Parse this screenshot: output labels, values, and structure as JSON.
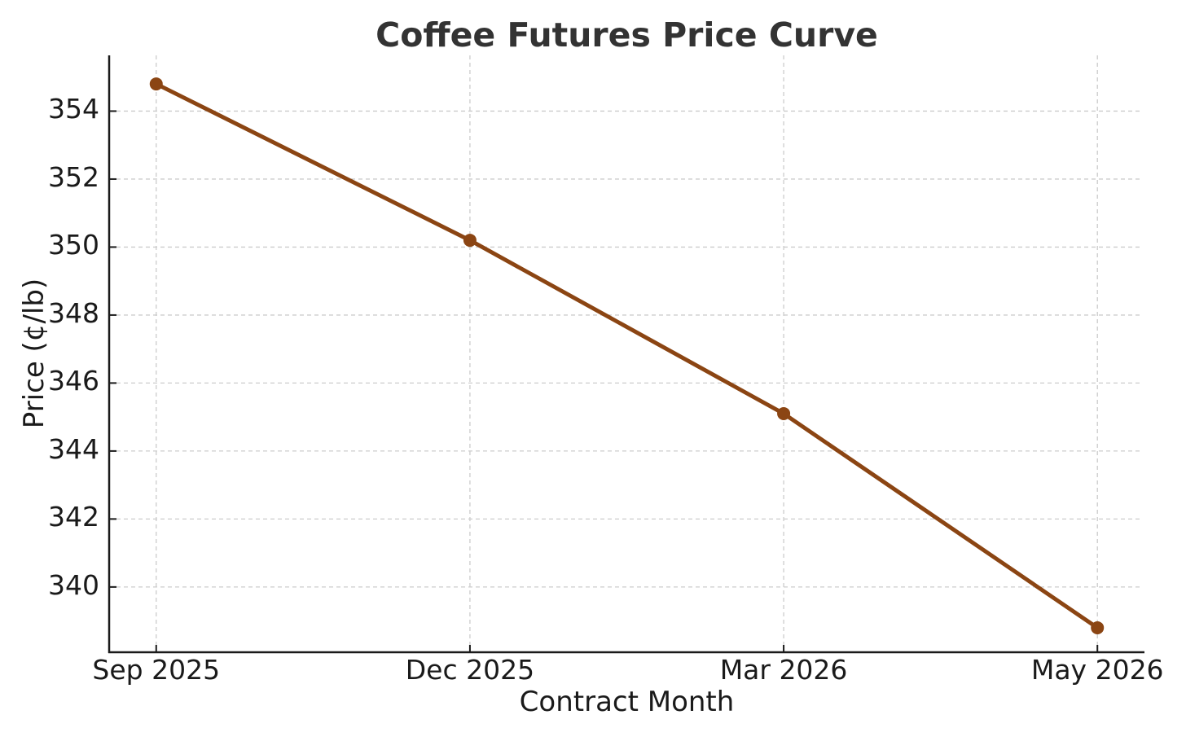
{
  "chart_data": {
    "type": "line",
    "title": "Coffee Futures Price Curve",
    "xlabel": "Contract Month",
    "ylabel": "Price (¢/lb)",
    "categories": [
      "Sep 2025",
      "Dec 2025",
      "Mar 2026",
      "May 2026"
    ],
    "values": [
      354.8,
      350.2,
      345.1,
      338.8
    ],
    "y_ticks": [
      340,
      342,
      344,
      346,
      348,
      350,
      352,
      354
    ],
    "ylim": [
      338.08,
      355.64
    ],
    "xlim": [
      -0.15,
      3.15
    ],
    "grid": "dashed, both axes",
    "legend": "none",
    "line_color": "#8B4513",
    "marker": "circle",
    "marker_radius": 8,
    "style": {
      "grid_color": "#cccccc",
      "spine_color": "#1a1a1a",
      "text_color": "#1a1a1a",
      "title_color": "#333333",
      "background": "#ffffff"
    }
  }
}
